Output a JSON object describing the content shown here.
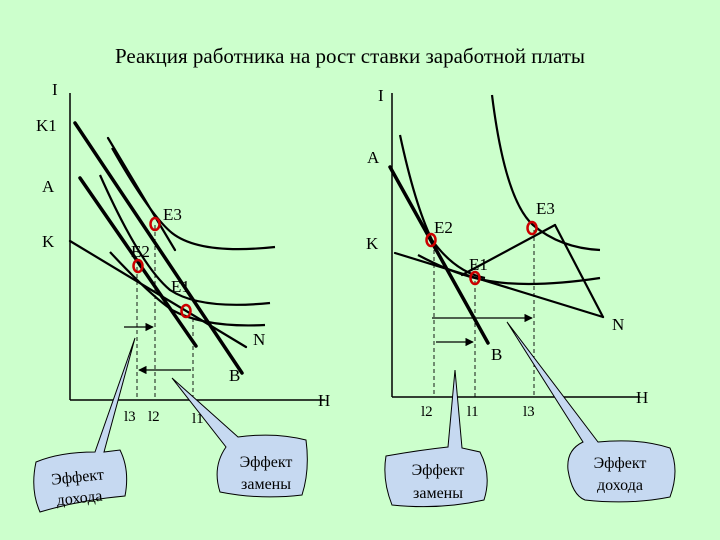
{
  "title": "Реакция работника на рост ставки заработной платы",
  "left": {
    "axis_y": "I",
    "axis_x": "H",
    "k1": "K1",
    "a": "A",
    "k": "K",
    "e3": "E3",
    "e2": "E2",
    "e1": "E1",
    "n": "N",
    "b": "B",
    "l3": "l3",
    "l2": "l2",
    "l1": "l1"
  },
  "right": {
    "axis_y": "I",
    "axis_x": "H",
    "a": "A",
    "k": "K",
    "e3": "E3",
    "e2": "E2",
    "e1": "E1",
    "n": "N",
    "b": "B",
    "l2": "l2",
    "l1": "l1",
    "l3": "l3"
  },
  "callouts": {
    "income_effect_left": [
      "Эффект",
      "дохода"
    ],
    "substitution_left": [
      "Эффект",
      "замены"
    ],
    "substitution_right": [
      "Эффект",
      "замены"
    ],
    "income_effect_right": [
      "Эффект",
      "дохода"
    ]
  },
  "colors": {
    "background": "#ccffcc",
    "callout_fill": "#c6d9f1",
    "equilibrium_marker": "#cc0000"
  }
}
